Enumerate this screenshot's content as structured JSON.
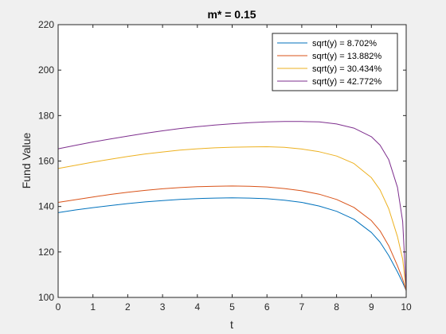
{
  "chart_data": {
    "type": "line",
    "title": "m* = 0.15",
    "xlabel": "t",
    "ylabel": "Fund Value",
    "xlim": [
      0,
      10
    ],
    "ylim": [
      100,
      220
    ],
    "xticks": [
      "0",
      "1",
      "2",
      "3",
      "4",
      "5",
      "6",
      "7",
      "8",
      "9",
      "10"
    ],
    "yticks": [
      "100",
      "120",
      "140",
      "160",
      "180",
      "200",
      "220"
    ],
    "grid": false,
    "legend_location": "top-right",
    "x": [
      0,
      0.5,
      1,
      1.5,
      2,
      2.5,
      3,
      3.5,
      4,
      4.5,
      5,
      5.5,
      6,
      6.5,
      7,
      7.5,
      8,
      8.5,
      9,
      9.25,
      9.5,
      9.75,
      9.9,
      10
    ],
    "series": [
      {
        "name": "sqrt(y) = 8.702%",
        "color": "#0072BD",
        "values": [
          137.3,
          138.5,
          139.5,
          140.4,
          141.3,
          142.0,
          142.6,
          143.1,
          143.5,
          143.7,
          143.8,
          143.7,
          143.4,
          142.8,
          141.8,
          140.2,
          137.9,
          134.4,
          128.6,
          124.3,
          118.4,
          111.2,
          106.5,
          103.0
        ]
      },
      {
        "name": "sqrt(y) = 13.882%",
        "color": "#D95319",
        "values": [
          141.8,
          143.0,
          144.2,
          145.3,
          146.3,
          147.1,
          147.8,
          148.3,
          148.7,
          148.9,
          149.0,
          148.9,
          148.6,
          147.9,
          146.9,
          145.4,
          143.1,
          139.6,
          133.8,
          129.3,
          122.7,
          113.9,
          108.0,
          103.0
        ]
      },
      {
        "name": "sqrt(y) = 30.434%",
        "color": "#EDB120",
        "values": [
          156.7,
          158.1,
          159.5,
          160.8,
          162.0,
          163.1,
          164.0,
          164.8,
          165.4,
          165.8,
          166.1,
          166.2,
          166.3,
          166.0,
          165.3,
          164.1,
          162.2,
          158.9,
          152.7,
          147.3,
          139.0,
          126.7,
          116.8,
          103.0
        ]
      },
      {
        "name": "sqrt(y) = 42.772%",
        "color": "#7E2F8E",
        "values": [
          165.4,
          166.9,
          168.4,
          169.7,
          171.0,
          172.2,
          173.3,
          174.3,
          175.1,
          175.8,
          176.4,
          176.9,
          177.2,
          177.4,
          177.4,
          177.2,
          176.3,
          174.5,
          170.7,
          167.0,
          160.6,
          148.4,
          133.4,
          103.0
        ]
      }
    ]
  }
}
